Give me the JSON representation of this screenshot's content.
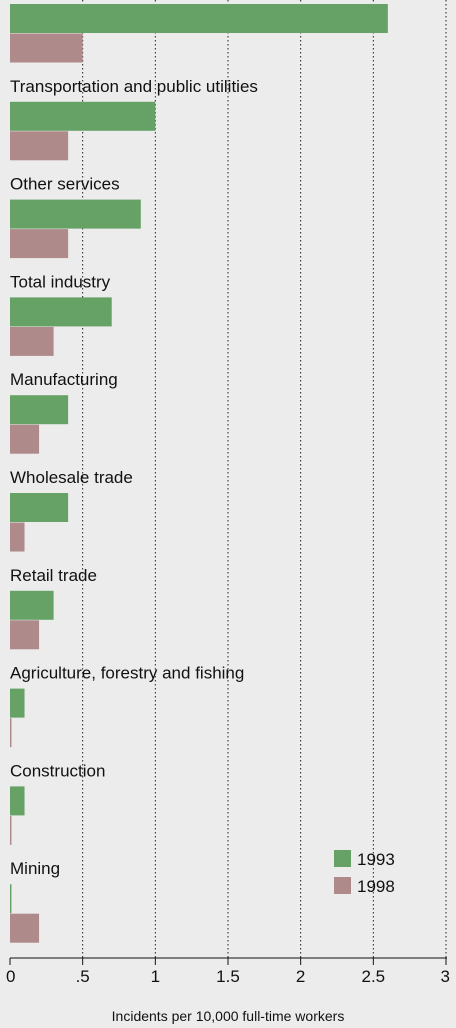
{
  "chart_data": {
    "type": "bar",
    "orientation": "horizontal",
    "categories": [
      "",
      "Transportation and public utilities",
      "Other services",
      "Total industry",
      "Manufacturing",
      "Wholesale trade",
      "Retail trade",
      "Agriculture, forestry and fishing",
      "Construction",
      "Mining"
    ],
    "series": [
      {
        "name": "1993",
        "color": "#66a266",
        "values": [
          2.6,
          1.0,
          0.9,
          0.7,
          0.4,
          0.4,
          0.3,
          0.1,
          0.1,
          0.01
        ]
      },
      {
        "name": "1998",
        "color": "#ae8a8a",
        "values": [
          0.5,
          0.4,
          0.4,
          0.3,
          0.2,
          0.1,
          0.2,
          0.01,
          0.01,
          0.2
        ]
      }
    ],
    "xlim": [
      0,
      3
    ],
    "xticks": [
      0,
      0.5,
      1,
      1.5,
      2,
      2.5,
      3
    ],
    "xtick_labels": [
      "0",
      ".5",
      "1",
      "1.5",
      "2",
      "2.5",
      "3"
    ],
    "xlabel": "Incidents per 10,000 full-time workers",
    "grid": "vertical dotted",
    "legend_position": "bottom-right"
  }
}
